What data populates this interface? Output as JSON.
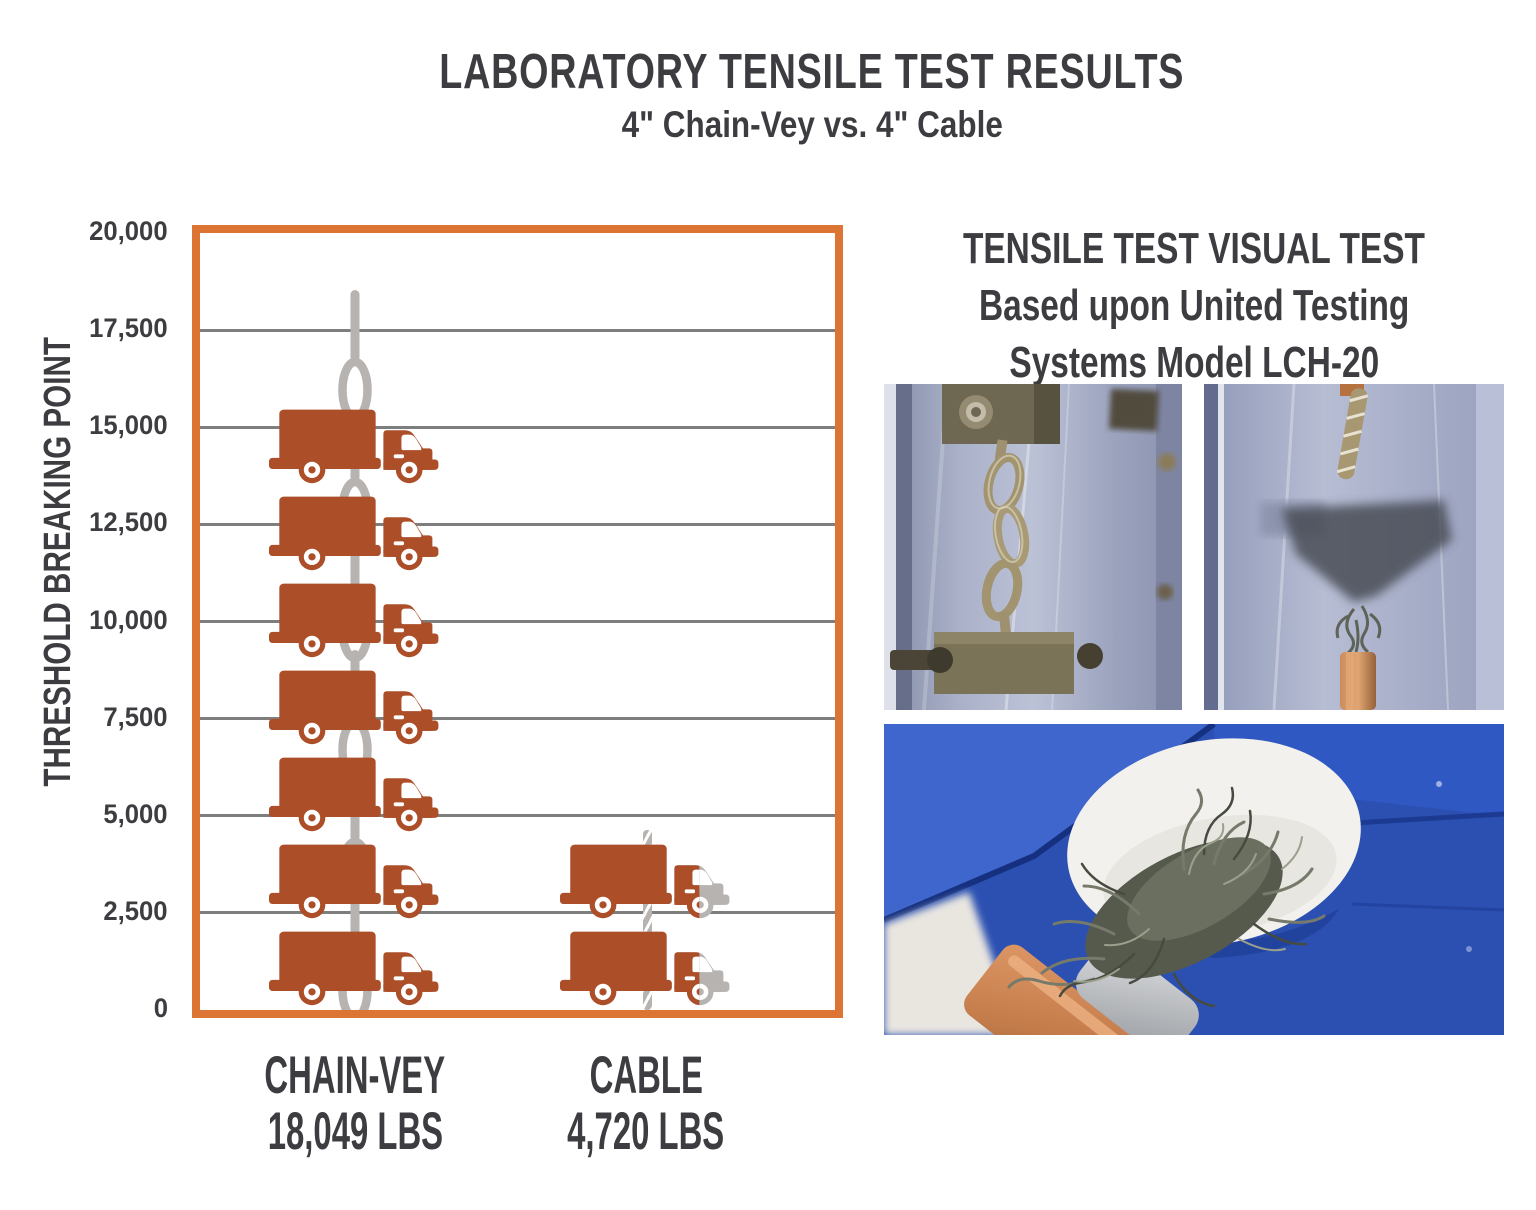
{
  "title": "LABORATORY TENSILE TEST RESULTS",
  "subtitle": "4\" Chain-Vey vs. 4\" Cable",
  "chart_data": {
    "type": "bar",
    "title": "LABORATORY TENSILE TEST RESULTS",
    "subtitle": "4\" Chain-Vey vs. 4\" Cable",
    "ylabel": "THRESHOLD BREAKING POINT",
    "ylim": [
      0,
      20000
    ],
    "ytick_interval": 2500,
    "yticks": [
      "20,000",
      "17,500",
      "15,000",
      "12,500",
      "10,000",
      "7,500",
      "5,000",
      "2,500",
      "0"
    ],
    "grid": true,
    "categories": [
      "CHAIN-VEY",
      "CABLE"
    ],
    "values": [
      18049,
      4720
    ],
    "value_labels": [
      "18,049 LBS",
      "4,720 LBS"
    ],
    "units": "LBS",
    "pictogram": {
      "symbol": "truck",
      "unit_lbs_per_truck": 2500,
      "chain_vey_truck_count": 7,
      "cable_truck_count": 2,
      "cable_truck_fill_fraction": 0.81,
      "chain_vey_connector": "chain",
      "cable_connector": "rope"
    }
  },
  "right_panel": {
    "heading_line1": "TENSILE TEST VISUAL TEST",
    "heading_line2": "Based upon United Testing",
    "heading_line3": "Systems Model LCH-20",
    "photos": [
      "chain-in-tensile-tester-photo",
      "cable-in-tensile-tester-photo",
      "frayed-cable-closeup-photo"
    ]
  },
  "colors": {
    "text_charcoal": "#3d3c40",
    "frame_orange": "#dc7434",
    "truck_rust": "#ac4e28",
    "neutral_gray": "#b6b3b0",
    "grid_gray": "#7e7e7e",
    "photo_blue": "#2b50b2"
  }
}
